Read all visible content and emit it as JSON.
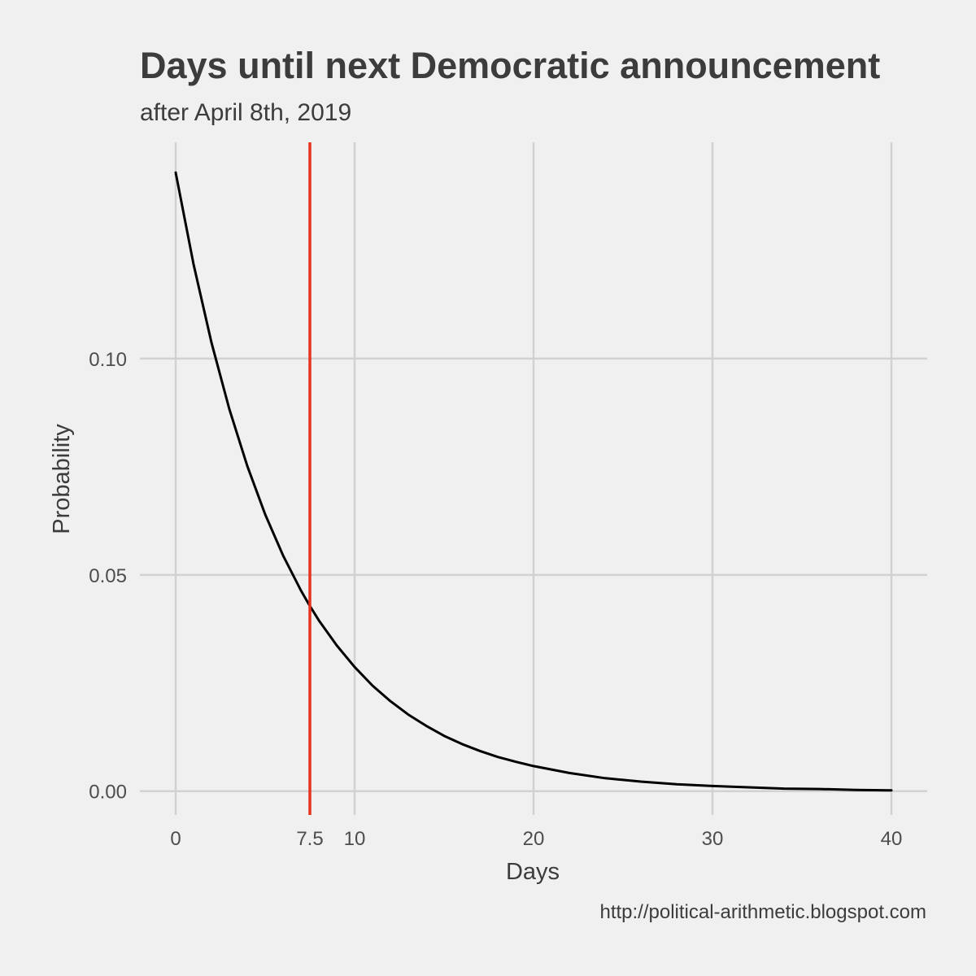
{
  "chart_data": {
    "type": "line",
    "title": "Days until next Democratic announcement",
    "subtitle": "after April 8th, 2019",
    "xlabel": "Days",
    "ylabel": "Probability",
    "caption": "http://political-arithmetic.blogspot.com",
    "xlim": [
      -2,
      42
    ],
    "ylim": [
      -0.0055,
      0.15
    ],
    "x_ticks": [
      0,
      7.5,
      10,
      20,
      30,
      40
    ],
    "x_tick_labels": [
      "0",
      "7.5",
      "10",
      "20",
      "30",
      "40"
    ],
    "y_ticks": [
      0,
      0.05,
      0.1
    ],
    "y_tick_labels": [
      "0.00",
      "0.05",
      "0.10"
    ],
    "grid": true,
    "legend": "none",
    "series": [
      {
        "color": "#000000",
        "x": [
          0,
          1,
          2,
          3,
          4,
          5,
          6,
          7,
          7.5,
          8,
          9,
          10,
          11,
          12,
          13,
          14,
          15,
          16,
          17,
          18,
          19,
          20,
          22,
          24,
          26,
          28,
          30,
          32,
          34,
          36,
          38,
          40
        ],
        "y": [
          0.143,
          0.1218,
          0.1037,
          0.0883,
          0.0752,
          0.064,
          0.0545,
          0.0464,
          0.0428,
          0.0395,
          0.0337,
          0.0287,
          0.0244,
          0.0208,
          0.0177,
          0.0151,
          0.0128,
          0.0109,
          0.0093,
          0.0079,
          0.0068,
          0.0058,
          0.0042,
          0.003,
          0.0022,
          0.0016,
          0.0012,
          0.0009,
          0.0006,
          0.0005,
          0.0003,
          0.0002
        ]
      }
    ],
    "vline": {
      "x": 7.5,
      "color": "#e8321e"
    }
  }
}
